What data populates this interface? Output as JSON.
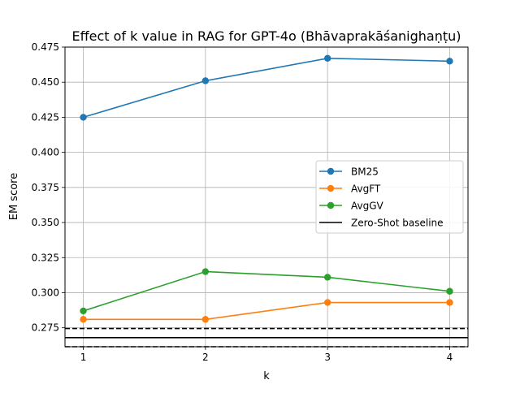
{
  "chart_data": {
    "type": "line",
    "title": "Effect of k value in RAG for GPT-4o (Bhāvaprakāśanighaṇṭu)",
    "xlabel": "k",
    "ylabel": "EM score",
    "x": [
      1,
      2,
      3,
      4
    ],
    "x_ticks": [
      "1",
      "2",
      "3",
      "4"
    ],
    "xlim": [
      0.85,
      4.15
    ],
    "ylim": [
      0.2615,
      0.475
    ],
    "y_ticks": [
      "0.275",
      "0.300",
      "0.325",
      "0.350",
      "0.375",
      "0.400",
      "0.425",
      "0.450",
      "0.475"
    ],
    "grid": true,
    "legend_position": "center-right",
    "series": [
      {
        "name": "BM25",
        "color": "#1f77b4",
        "values": [
          0.425,
          0.451,
          0.467,
          0.465
        ]
      },
      {
        "name": "AvgFT",
        "color": "#ff7f0e",
        "values": [
          0.281,
          0.281,
          0.293,
          0.293
        ]
      },
      {
        "name": "AvgGV",
        "color": "#2ca02c",
        "values": [
          0.287,
          0.315,
          0.311,
          0.301
        ]
      }
    ],
    "baseline": {
      "name": "Zero-Shot baseline",
      "color": "#000000",
      "value": 0.268,
      "band": [
        0.2615,
        0.2745
      ]
    }
  }
}
